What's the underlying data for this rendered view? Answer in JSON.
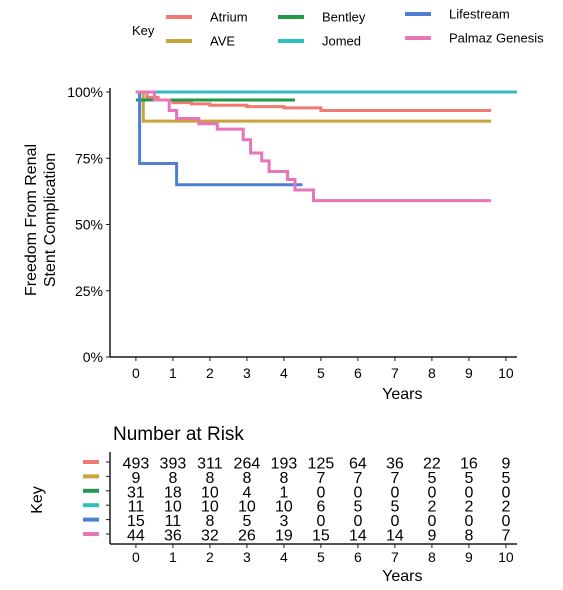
{
  "chart_data": [
    {
      "type": "line",
      "title": "",
      "xlabel": "Years",
      "ylabel": "Freedom From Renal\nStent Complication",
      "xlim": [
        -0.7,
        10.3
      ],
      "ylim": [
        0,
        100
      ],
      "xticks": [
        "0",
        "1",
        "2",
        "3",
        "4",
        "5",
        "6",
        "7",
        "8",
        "9",
        "10"
      ],
      "yticks": [
        "0%",
        "25%",
        "50%",
        "75%",
        "100%"
      ],
      "grid": false,
      "legend": {
        "title": "Key",
        "placement": "top",
        "entries": [
          "Atrium",
          "AVE",
          "Bentley",
          "Jomed",
          "Lifestream",
          "Palmaz Genesis"
        ]
      },
      "series": [
        {
          "name": "Atrium",
          "color": "#f07a72",
          "points": [
            [
              0,
              100
            ],
            [
              0.3,
              98
            ],
            [
              0.6,
              97
            ],
            [
              1.0,
              96
            ],
            [
              1.5,
              95.5
            ],
            [
              2.0,
              95
            ],
            [
              3.0,
              94.5
            ],
            [
              4.0,
              94
            ],
            [
              5.0,
              93
            ],
            [
              9.6,
              93
            ]
          ]
        },
        {
          "name": "AVE",
          "color": "#c9a43b",
          "points": [
            [
              0,
              100
            ],
            [
              0.2,
              89
            ],
            [
              9.6,
              89
            ]
          ]
        },
        {
          "name": "Bentley",
          "color": "#1f9a4b",
          "points": [
            [
              0,
              97
            ],
            [
              4.3,
              97
            ]
          ]
        },
        {
          "name": "Jomed",
          "color": "#2fbfc2",
          "points": [
            [
              0,
              100
            ],
            [
              10.3,
              100
            ]
          ]
        },
        {
          "name": "Lifestream",
          "color": "#4f7fd0",
          "points": [
            [
              0,
              100
            ],
            [
              0.1,
              73
            ],
            [
              1.1,
              73
            ],
            [
              1.1,
              65
            ],
            [
              4.5,
              65
            ]
          ]
        },
        {
          "name": "Palmaz Genesis",
          "color": "#e874b9",
          "points": [
            [
              0,
              100
            ],
            [
              0.5,
              97
            ],
            [
              0.9,
              93
            ],
            [
              1.1,
              90
            ],
            [
              1.7,
              88
            ],
            [
              2.2,
              86
            ],
            [
              2.9,
              82
            ],
            [
              3.1,
              77
            ],
            [
              3.4,
              74
            ],
            [
              3.6,
              70
            ],
            [
              4.1,
              67
            ],
            [
              4.3,
              63
            ],
            [
              4.6,
              63
            ],
            [
              4.8,
              59
            ],
            [
              9.6,
              59
            ]
          ]
        }
      ]
    },
    {
      "type": "table",
      "title": "Number at Risk",
      "ylabel": "Key",
      "xlabel": "Years",
      "xticks": [
        "0",
        "1",
        "2",
        "3",
        "4",
        "5",
        "6",
        "7",
        "8",
        "9",
        "10"
      ],
      "rows": [
        {
          "color": "#f07a72",
          "values": [
            "493",
            "393",
            "311",
            "264",
            "193",
            "125",
            "64",
            "36",
            "22",
            "16",
            "9"
          ]
        },
        {
          "color": "#c9a43b",
          "values": [
            "9",
            "8",
            "8",
            "8",
            "8",
            "7",
            "7",
            "7",
            "5",
            "5",
            "5"
          ]
        },
        {
          "color": "#1f9a4b",
          "values": [
            "31",
            "18",
            "10",
            "4",
            "1",
            "0",
            "0",
            "0",
            "0",
            "0",
            "0"
          ]
        },
        {
          "color": "#2fbfc2",
          "values": [
            "11",
            "10",
            "10",
            "10",
            "10",
            "6",
            "5",
            "5",
            "2",
            "2",
            "2"
          ]
        },
        {
          "color": "#4f7fd0",
          "values": [
            "15",
            "11",
            "8",
            "5",
            "3",
            "0",
            "0",
            "0",
            "0",
            "0",
            "0"
          ]
        },
        {
          "color": "#e874b9",
          "values": [
            "44",
            "36",
            "32",
            "26",
            "19",
            "15",
            "14",
            "14",
            "9",
            "8",
            "7"
          ]
        }
      ]
    }
  ]
}
